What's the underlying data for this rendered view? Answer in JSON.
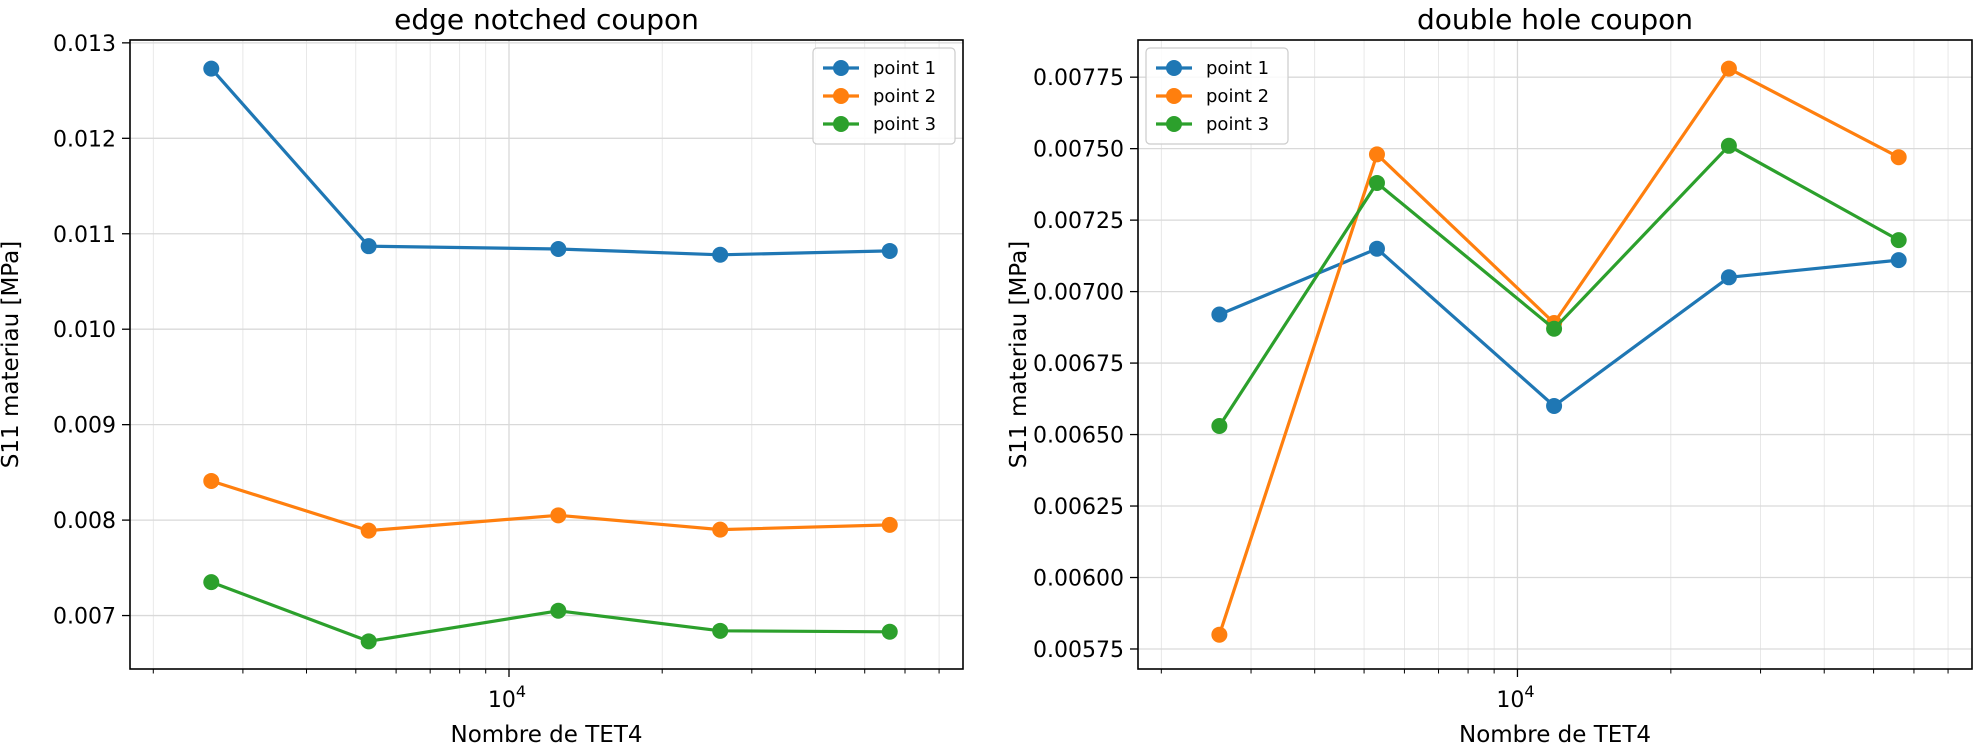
{
  "colors": {
    "point_1": "#1f77b4",
    "point_2": "#ff7f0e",
    "point_3": "#2ca02c",
    "grid": "#d9d9d9",
    "axes": "#000000"
  },
  "chart_data": [
    {
      "type": "line",
      "title": "edge notched coupon",
      "xlabel": "Nombre de TET4",
      "ylabel": "S11 materiau [MPa]",
      "xscale": "log",
      "grid": true,
      "legend_position": "top-right",
      "xlim": [
        1800,
        78000
      ],
      "ylim": [
        0.00644,
        0.01303
      ],
      "x_tick_label": {
        "base": "10",
        "exp": "4",
        "value": 10000
      },
      "y_ticks": [
        0.007,
        0.008,
        0.009,
        0.01,
        0.011,
        0.012,
        0.013
      ],
      "y_tick_labels": [
        "0.007",
        "0.008",
        "0.009",
        "0.010",
        "0.011",
        "0.012",
        "0.013"
      ],
      "x": [
        2600,
        5300,
        12500,
        26000,
        56000
      ],
      "series": [
        {
          "name": "point 1",
          "color_key": "point_1",
          "values": [
            0.01273,
            0.01087,
            0.01084,
            0.01078,
            0.01082
          ]
        },
        {
          "name": "point 2",
          "color_key": "point_2",
          "values": [
            0.00841,
            0.00789,
            0.00805,
            0.0079,
            0.00795
          ]
        },
        {
          "name": "point 3",
          "color_key": "point_3",
          "values": [
            0.00735,
            0.00673,
            0.00705,
            0.00684,
            0.00683
          ]
        }
      ]
    },
    {
      "type": "line",
      "title": "double hole coupon",
      "xlabel": "Nombre de TET4",
      "ylabel": "S11 materiau [MPa]",
      "xscale": "log",
      "grid": true,
      "legend_position": "top-left",
      "xlim": [
        1800,
        78000
      ],
      "ylim": [
        0.00568,
        0.00788
      ],
      "x_tick_label": {
        "base": "10",
        "exp": "4",
        "value": 10000
      },
      "y_ticks": [
        0.00575,
        0.006,
        0.00625,
        0.0065,
        0.00675,
        0.007,
        0.00725,
        0.0075,
        0.00775
      ],
      "y_tick_labels": [
        "0.00575",
        "0.00600",
        "0.00625",
        "0.00650",
        "0.00675",
        "0.00700",
        "0.00725",
        "0.00750",
        "0.00775"
      ],
      "x": [
        2600,
        5300,
        11800,
        26000,
        56000
      ],
      "series": [
        {
          "name": "point 1",
          "color_key": "point_1",
          "values": [
            0.00692,
            0.00715,
            0.0066,
            0.00705,
            0.00711
          ]
        },
        {
          "name": "point 2",
          "color_key": "point_2",
          "values": [
            0.0058,
            0.00748,
            0.00689,
            0.00778,
            0.00747
          ]
        },
        {
          "name": "point 3",
          "color_key": "point_3",
          "values": [
            0.00653,
            0.00738,
            0.00687,
            0.00751,
            0.00718
          ]
        }
      ]
    }
  ]
}
